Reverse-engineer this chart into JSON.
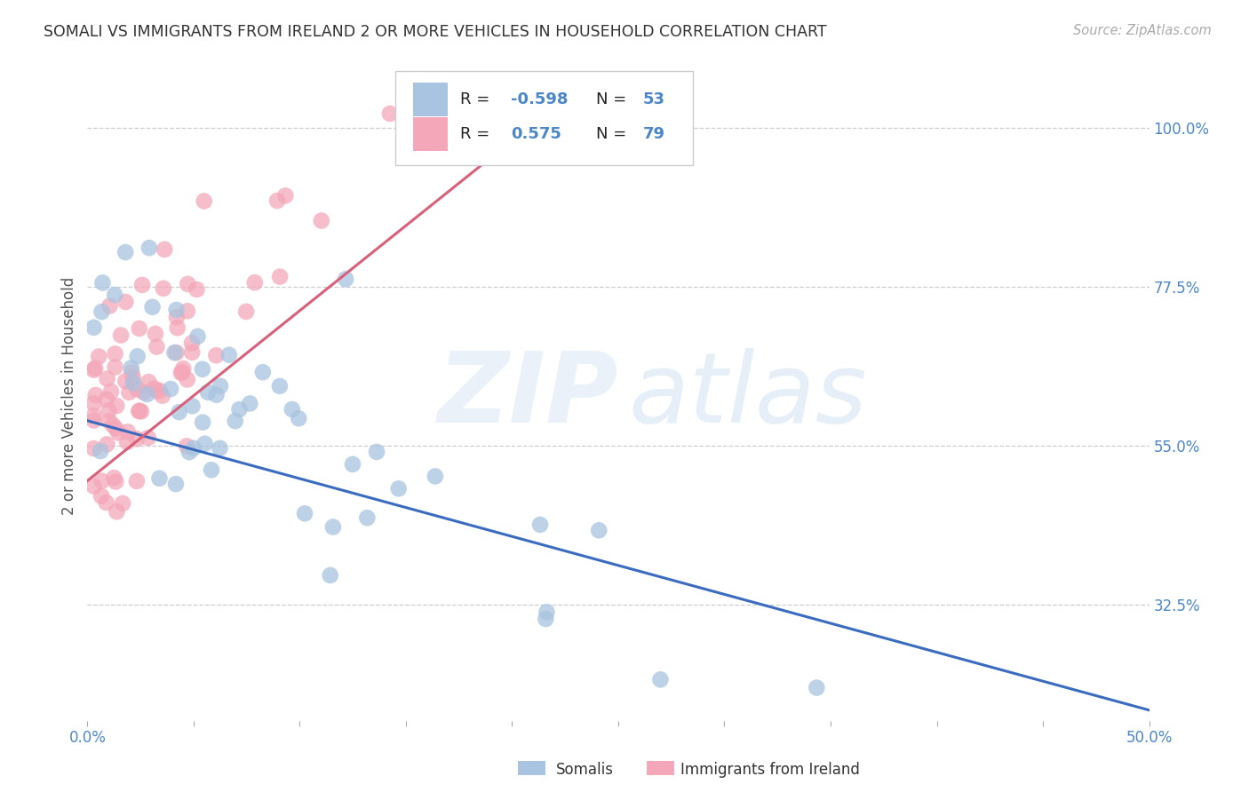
{
  "title": "SOMALI VS IMMIGRANTS FROM IRELAND 2 OR MORE VEHICLES IN HOUSEHOLD CORRELATION CHART",
  "source": "Source: ZipAtlas.com",
  "ylabel": "2 or more Vehicles in Household",
  "yticks": [
    0.325,
    0.55,
    0.775,
    1.0
  ],
  "ytick_labels": [
    "32.5%",
    "55.0%",
    "77.5%",
    "100.0%"
  ],
  "xmin": 0.0,
  "xmax": 0.5,
  "ymin": 0.16,
  "ymax": 1.08,
  "somali_color": "#a8c4e0",
  "ireland_color": "#f4a7b9",
  "somali_line_color": "#3a6bbf",
  "ireland_line_color": "#d9607a",
  "somali_trendline_x": [
    0.0,
    0.5
  ],
  "somali_trendline_y": [
    0.585,
    0.175
  ],
  "ireland_trendline_x": [
    0.0,
    0.22
  ],
  "ireland_trendline_y": [
    0.5,
    1.03
  ]
}
